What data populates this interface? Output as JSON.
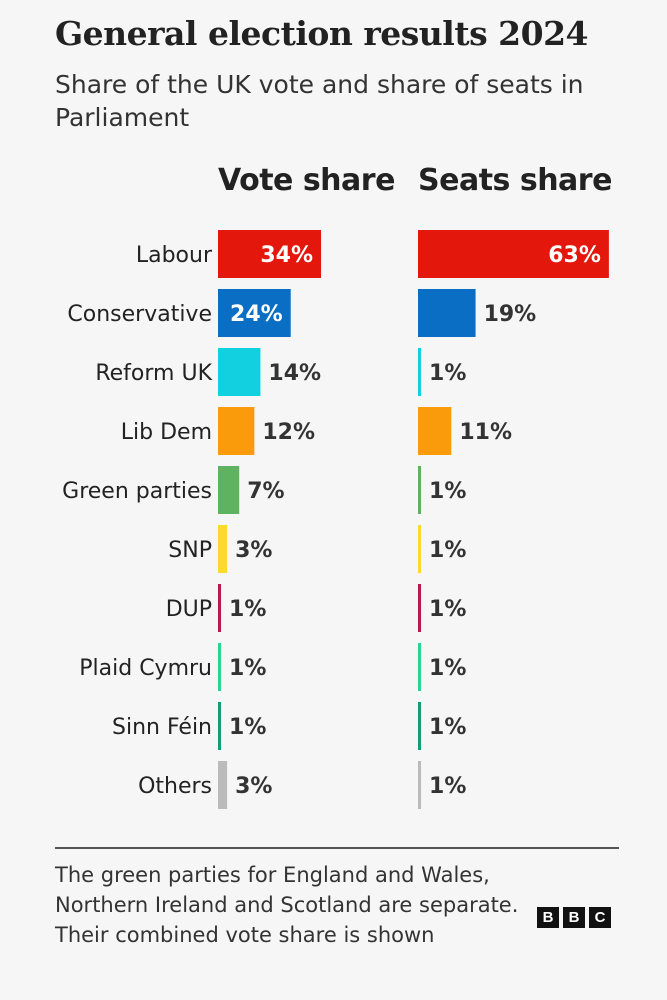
{
  "chart_data": {
    "type": "bar",
    "orientation": "horizontal",
    "title": "General election results 2024",
    "subtitle": "Share of the UK vote and share of seats in Parliament",
    "categories": [
      "Labour",
      "Conservative",
      "Reform UK",
      "Lib Dem",
      "Green parties",
      "SNP",
      "DUP",
      "Plaid Cymru",
      "Sinn Féin",
      "Others"
    ],
    "colors": [
      "#e4170d",
      "#0a6fc4",
      "#12d0df",
      "#fa9b0c",
      "#5fb25f",
      "#fdd92f",
      "#b51c4b",
      "#2ad68f",
      "#159b78",
      "#bbbbbb"
    ],
    "series": [
      {
        "name": "Vote share",
        "values": [
          34,
          24,
          14,
          12,
          7,
          3,
          1,
          1,
          1,
          3
        ],
        "labels": [
          "34%",
          "24%",
          "14%",
          "12%",
          "7%",
          "3%",
          "1%",
          "1%",
          "1%",
          "3%"
        ]
      },
      {
        "name": "Seats share",
        "values": [
          63,
          19,
          1,
          11,
          1,
          1,
          1,
          1,
          1,
          1
        ],
        "labels": [
          "63%",
          "19%",
          "1%",
          "11%",
          "1%",
          "1%",
          "1%",
          "1%",
          "1%",
          "1%"
        ]
      }
    ],
    "unit": "%",
    "xlim": [
      0,
      63
    ],
    "grid": false,
    "legend": "none"
  },
  "footnote": "The green parties for England and Wales, Northern Ireland and Scotland are separate. Their combined vote share is shown",
  "logo": [
    "B",
    "B",
    "C"
  ]
}
